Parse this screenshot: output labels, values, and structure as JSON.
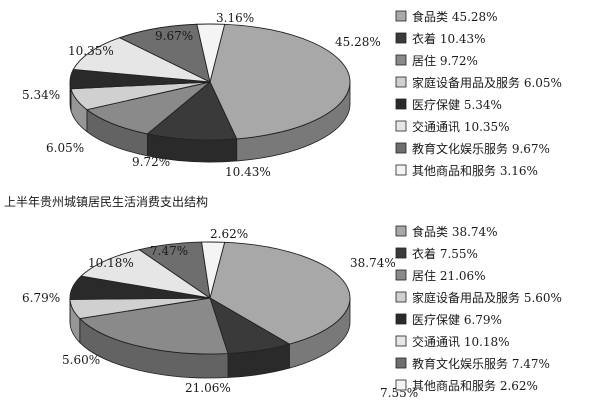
{
  "caption": "上半年贵州城镇居民生活消费支出结构",
  "colors": {
    "food": "#a8a8a8",
    "clothing": "#3a3a3a",
    "housing": "#8a8a8a",
    "household": "#d0d0d0",
    "medical": "#2a2a2a",
    "transport": "#e6e6e6",
    "education": "#6e6e6e",
    "other": "#f4f4f4"
  },
  "chart_data": [
    {
      "type": "pie",
      "slices": [
        {
          "label": "食品类",
          "value": 45.28,
          "text": "45.28%",
          "legend": "食品类 45.28%"
        },
        {
          "label": "衣着",
          "value": 10.43,
          "text": "10.43%",
          "legend": "衣着 10.43%"
        },
        {
          "label": "居住",
          "value": 9.72,
          "text": "9.72%",
          "legend": "居住 9.72%"
        },
        {
          "label": "家庭设备用品及服务",
          "value": 6.05,
          "text": "6.05%",
          "legend": "家庭设备用品及服务 6.05%"
        },
        {
          "label": "医疗保健",
          "value": 5.34,
          "text": "5.34%",
          "legend": "医疗保健 5.34%"
        },
        {
          "label": "交通通讯",
          "value": 10.35,
          "text": "10.35%",
          "legend": "交通通讯 10.35%"
        },
        {
          "label": "教育文化娱乐服务",
          "value": 9.67,
          "text": "9.67%",
          "legend": "教育文化娱乐服务 9.67%"
        },
        {
          "label": "其他商品和服务",
          "value": 3.16,
          "text": "3.16%",
          "legend": "其他商品和服务 3.16%"
        }
      ]
    },
    {
      "type": "pie",
      "slices": [
        {
          "label": "食品类",
          "value": 38.74,
          "text": "38.74%",
          "legend": "食品类 38.74%"
        },
        {
          "label": "衣着",
          "value": 7.55,
          "text": "7.55%",
          "legend": "衣着 7.55%"
        },
        {
          "label": "居住",
          "value": 21.06,
          "text": "21.06%",
          "legend": "居住 21.06%"
        },
        {
          "label": "家庭设备用品及服务",
          "value": 5.6,
          "text": "5.60%",
          "legend": "家庭设备用品及服务 5.60%"
        },
        {
          "label": "医疗保健",
          "value": 6.79,
          "text": "6.79%",
          "legend": "医疗保健 6.79%"
        },
        {
          "label": "交通通讯",
          "value": 10.18,
          "text": "10.18%",
          "legend": "交通通讯 10.18%"
        },
        {
          "label": "教育文化娱乐服务",
          "value": 7.47,
          "text": "7.47%",
          "legend": "教育文化娱乐服务 7.47%"
        },
        {
          "label": "其他商品和服务",
          "value": 2.62,
          "text": "2.62%",
          "legend": "其他商品和服务 2.62%"
        }
      ]
    }
  ]
}
